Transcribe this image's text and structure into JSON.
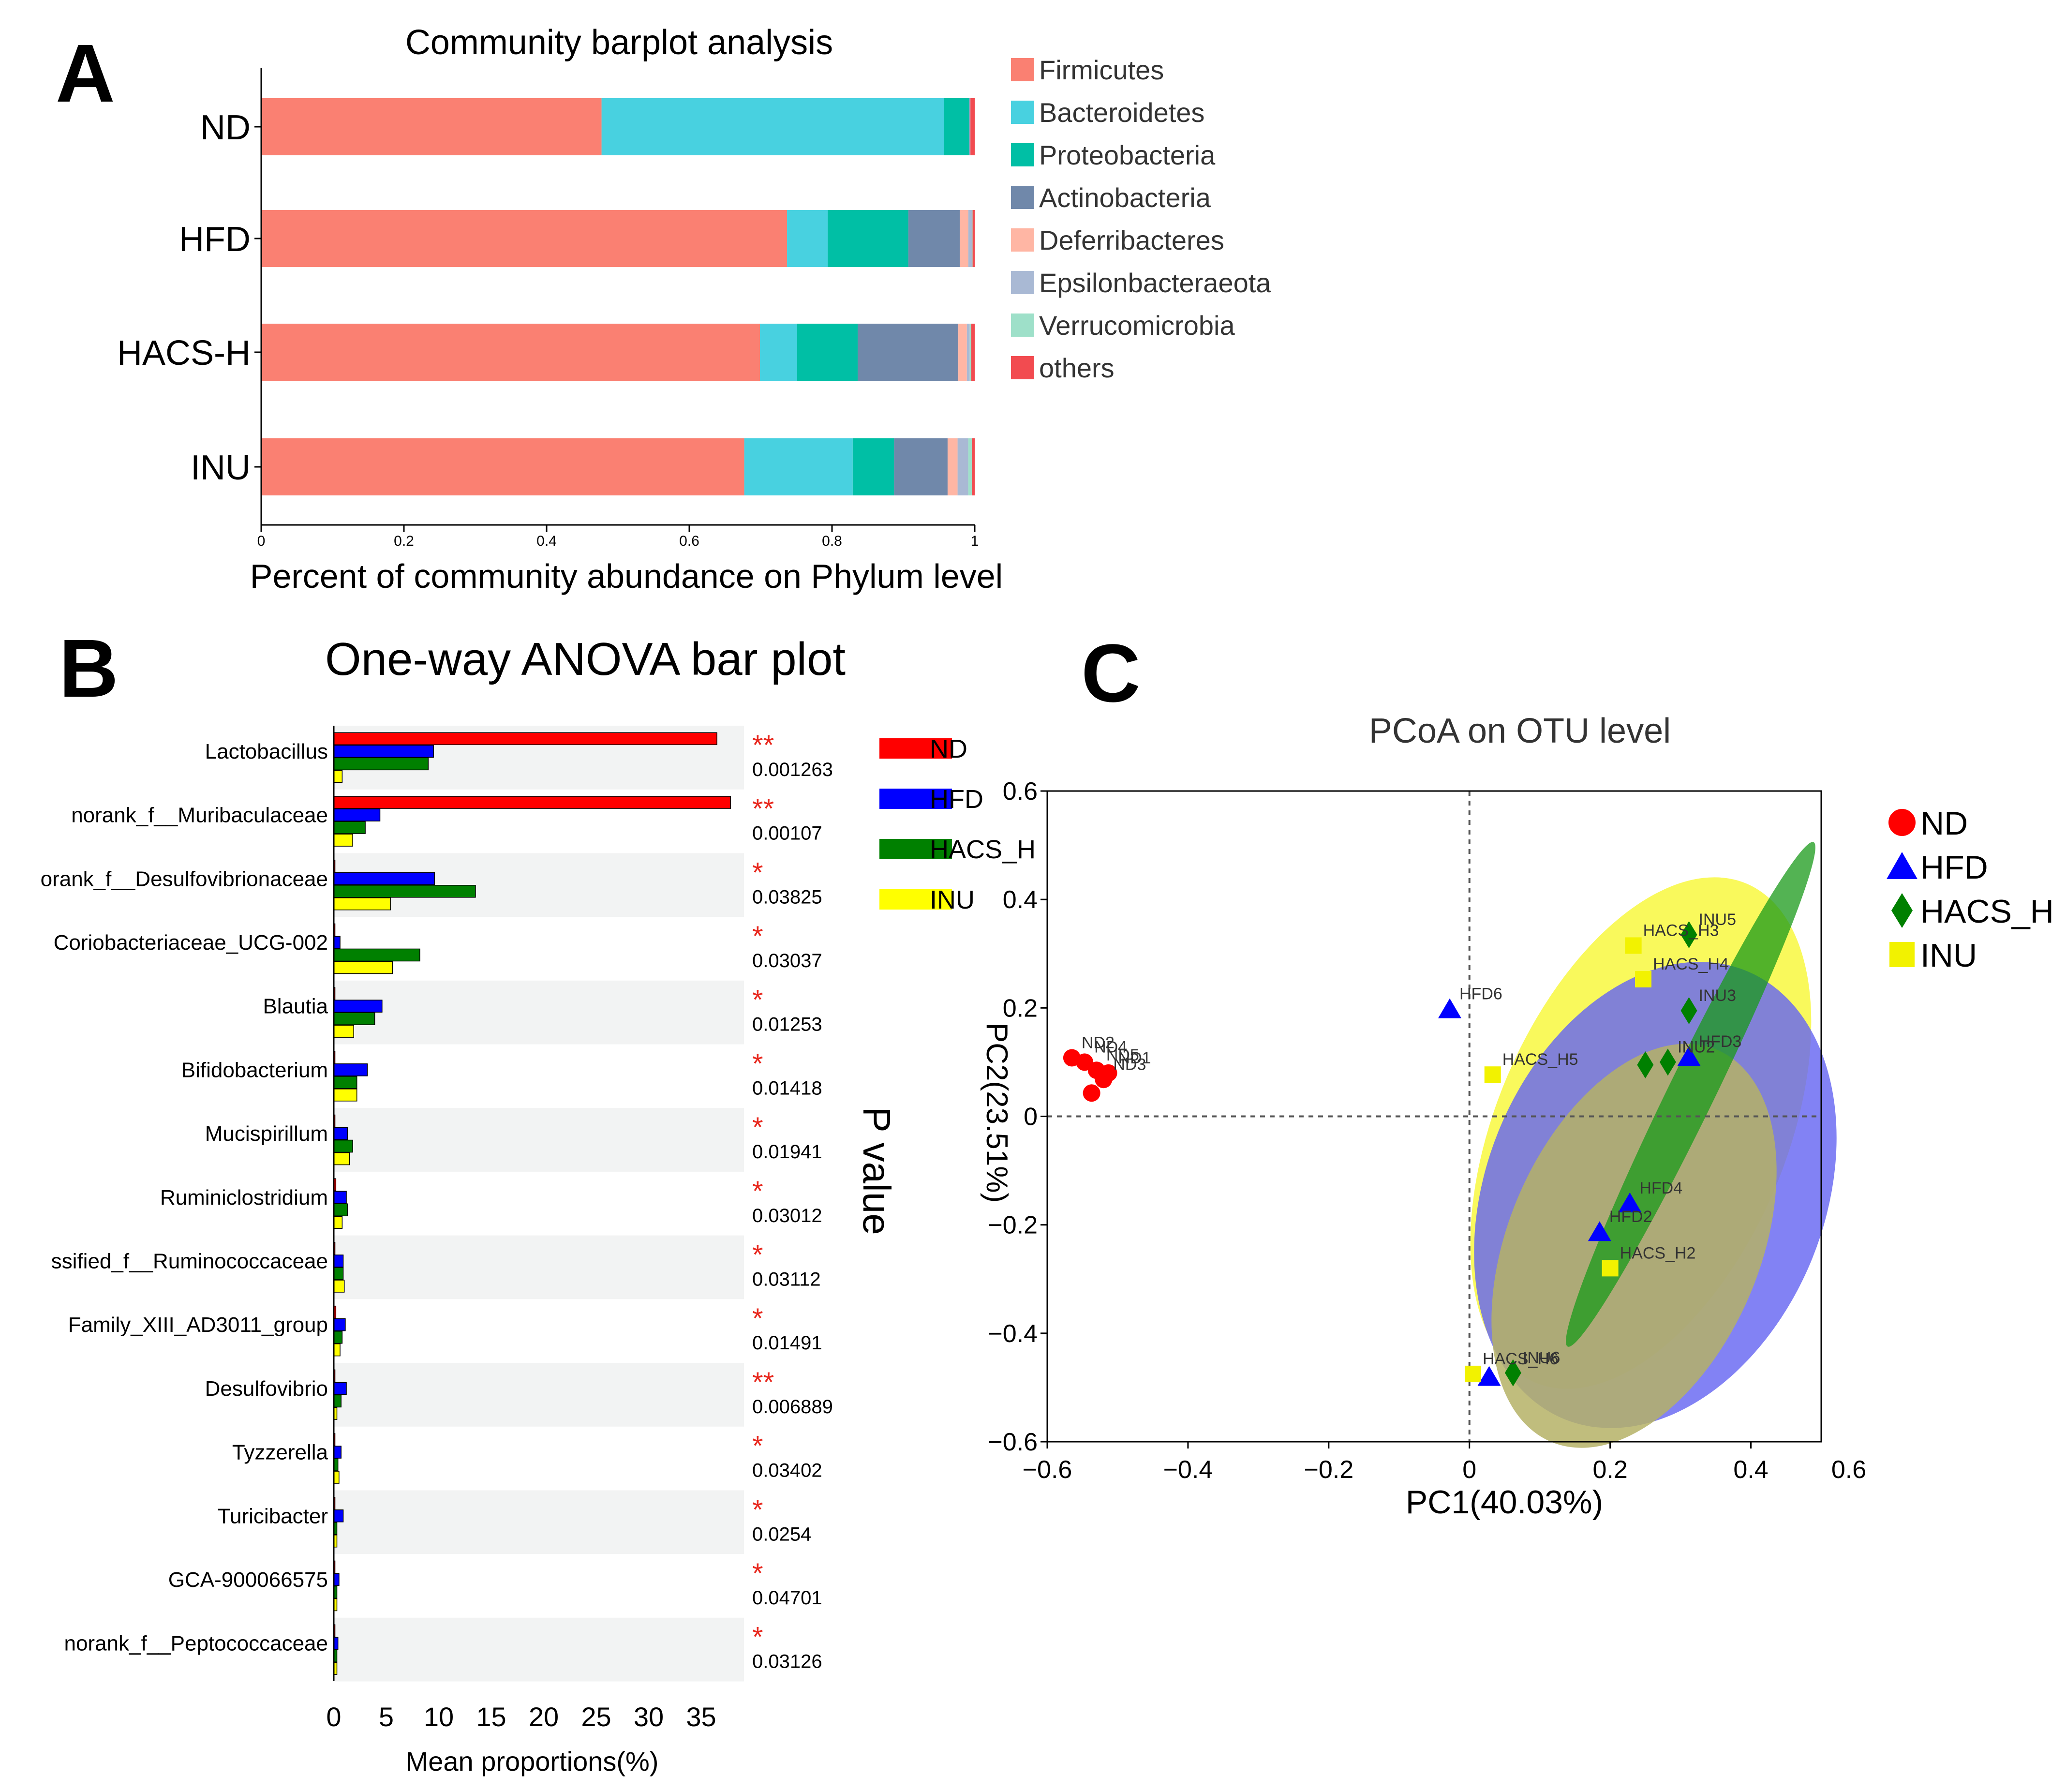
{
  "panel_labels": {
    "a": "A",
    "b": "B",
    "c": "C"
  },
  "chart_data": [
    {
      "id": "A",
      "type": "bar",
      "stacked": true,
      "orientation": "horizontal",
      "title": "Community barplot analysis",
      "xlabel": "Percent of community abundance on Phylum level",
      "xlim": [
        0,
        1
      ],
      "xticks": [
        "0",
        "0.2",
        "0.4",
        "0.6",
        "0.8",
        "1"
      ],
      "categories": [
        "ND",
        "HFD",
        "HACS-H",
        "INU"
      ],
      "series": [
        {
          "name": "Firmicutes",
          "color": "#FA8072",
          "values": [
            0.477,
            0.737,
            0.699,
            0.677
          ]
        },
        {
          "name": "Bacteroidetes",
          "color": "#48D1E0",
          "values": [
            0.48,
            0.057,
            0.052,
            0.152
          ]
        },
        {
          "name": "Proteobacteria",
          "color": "#00BFA5",
          "values": [
            0.035,
            0.113,
            0.085,
            0.058
          ]
        },
        {
          "name": "Actinobacteria",
          "color": "#7088AA",
          "values": [
            0.001,
            0.072,
            0.141,
            0.075
          ]
        },
        {
          "name": "Deferribacteres",
          "color": "#FFB6A4",
          "values": [
            0.0,
            0.012,
            0.012,
            0.014
          ]
        },
        {
          "name": "Epsilonbacteraeota",
          "color": "#A9B9D4",
          "values": [
            0.001,
            0.005,
            0.004,
            0.015
          ]
        },
        {
          "name": "Verrucomicrobia",
          "color": "#9EE0C9",
          "values": [
            0.0,
            0.001,
            0.002,
            0.005
          ]
        },
        {
          "name": "others",
          "color": "#F24B50",
          "values": [
            0.006,
            0.003,
            0.005,
            0.004
          ]
        }
      ]
    },
    {
      "id": "B",
      "type": "bar",
      "orientation": "horizontal",
      "title": "One-way ANOVA bar plot",
      "xlabel": "Mean proportions(%)",
      "side_label": "P value",
      "xlim": [
        0,
        38.5
      ],
      "xticks": [
        "0",
        "5",
        "10",
        "15",
        "20",
        "25",
        "30",
        "35"
      ],
      "categories": [
        "Lactobacillus",
        "norank_f__Muribaculaceae",
        "orank_f__Desulfovibrionaceae",
        "Coriobacteriaceae_UCG-002",
        "Blautia",
        "Bifidobacterium",
        "Mucispirillum",
        "Ruminiclostridium",
        "ssified_f__Ruminococcaceae",
        "Family_XIII_AD3011_group",
        "Desulfovibrio",
        "Tyzzerella",
        "Turicibacter",
        "GCA-900066575",
        "norank_f__Peptococcaceae"
      ],
      "significance": [
        "**",
        "**",
        "*",
        "*",
        "*",
        "*",
        "*",
        "*",
        "*",
        "*",
        "**",
        "*",
        "*",
        "*",
        "*"
      ],
      "p_values": [
        "0.001263",
        "0.00107",
        "0.03825",
        "0.03037",
        "0.01253",
        "0.01418",
        "0.01941",
        "0.03012",
        "0.03112",
        "0.01491",
        "0.006889",
        "0.03402",
        "0.0254",
        "0.04701",
        "0.03126"
      ],
      "series": [
        {
          "name": "ND",
          "color": "#FF0000",
          "values": [
            36.5,
            37.8,
            0.1,
            0.1,
            0.1,
            0.0,
            0.1,
            0.2,
            0.1,
            0.2,
            0.1,
            0.0,
            0.1,
            0.0,
            0.0
          ]
        },
        {
          "name": "HFD",
          "color": "#0000FF",
          "values": [
            9.5,
            4.4,
            9.6,
            0.6,
            4.6,
            3.2,
            1.3,
            1.2,
            0.9,
            1.1,
            1.2,
            0.7,
            0.9,
            0.5,
            0.4
          ]
        },
        {
          "name": "HACS_H",
          "color": "#008000",
          "values": [
            9.0,
            3.0,
            13.5,
            8.2,
            3.9,
            2.2,
            1.8,
            1.3,
            0.9,
            0.8,
            0.7,
            0.4,
            0.3,
            0.3,
            0.3
          ]
        },
        {
          "name": "INU",
          "color": "#FFFF00",
          "values": [
            0.8,
            1.8,
            5.4,
            5.6,
            1.9,
            2.2,
            1.5,
            0.8,
            1.0,
            0.6,
            0.3,
            0.5,
            0.3,
            0.3,
            0.3
          ]
        }
      ]
    },
    {
      "id": "C",
      "type": "scatter",
      "title": "PCoA on OTU level",
      "xlabel": "PC1(40.03%)",
      "ylabel": "PC2(23.51%)",
      "xlim": [
        -0.6,
        0.5
      ],
      "ylim": [
        -0.6,
        0.6
      ],
      "xticks": [
        "−0.6",
        "−0.4",
        "−0.2",
        "0",
        "0.2",
        "0.4",
        "0.6"
      ],
      "yticks": [
        "0.6",
        "0.4",
        "0.2",
        "0",
        "−0.2",
        "−0.4",
        "−0.6"
      ],
      "series": [
        {
          "name": "ND",
          "color": "#FF0000",
          "marker": "circle",
          "points": [
            {
              "label": "ND2",
              "x": -0.565,
              "y": 0.108
            },
            {
              "label": "ND4",
              "x": -0.547,
              "y": 0.1
            },
            {
              "label": "ND5",
              "x": -0.53,
              "y": 0.085
            },
            {
              "label": "ND1",
              "x": -0.513,
              "y": 0.08
            },
            {
              "label": "ND3",
              "x": -0.52,
              "y": 0.068
            },
            {
              "label": "",
              "x": -0.537,
              "y": 0.043
            }
          ]
        },
        {
          "name": "HFD",
          "color": "#0000FF",
          "marker": "triangle",
          "points": [
            {
              "label": "HFD6",
              "x": -0.028,
              "y": 0.198
            },
            {
              "label": "HFD3",
              "x": 0.312,
              "y": 0.11
            },
            {
              "label": "HFD4",
              "x": 0.228,
              "y": -0.16
            },
            {
              "label": "HFD2",
              "x": 0.185,
              "y": -0.213
            },
            {
              "label": "",
              "x": 0.028,
              "y": -0.48
            }
          ]
        },
        {
          "name": "HACS_H",
          "color": "#008000",
          "marker": "diamond",
          "points": [
            {
              "label": "INU5",
              "x": 0.312,
              "y": 0.335
            },
            {
              "label": "INU3",
              "x": 0.312,
              "y": 0.195
            },
            {
              "label": "INU2",
              "x": 0.282,
              "y": 0.1
            },
            {
              "label": "",
              "x": 0.25,
              "y": 0.095
            },
            {
              "label": "INU6",
              "x": 0.062,
              "y": -0.473
            }
          ]
        },
        {
          "name": "INU",
          "color": "#FFFF00",
          "marker": "square",
          "points": [
            {
              "label": "HACS_H3",
              "x": 0.233,
              "y": 0.315
            },
            {
              "label": "HACS_H4",
              "x": 0.247,
              "y": 0.253
            },
            {
              "label": "HACS_H5",
              "x": 0.033,
              "y": 0.077
            },
            {
              "label": "HACS_H2",
              "x": 0.2,
              "y": -0.28
            },
            {
              "label": "HACS_H6",
              "x": 0.005,
              "y": -0.475
            }
          ]
        }
      ]
    }
  ]
}
